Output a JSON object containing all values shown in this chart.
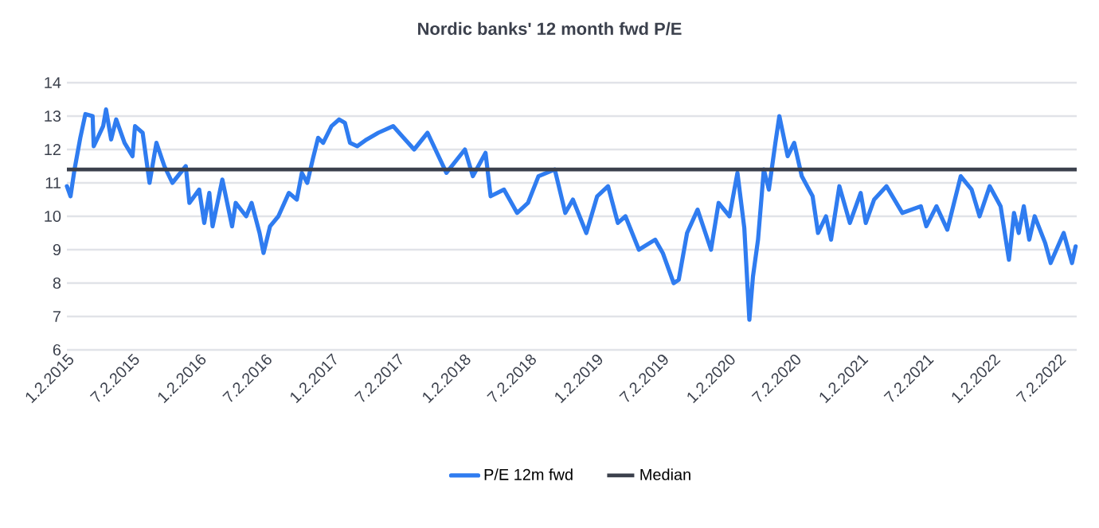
{
  "chart_data": {
    "type": "line",
    "title": "Nordic banks' 12 month fwd P/E",
    "x": [
      "2015-01-01",
      "2015-01-11",
      "2015-01-22",
      "2015-02-07",
      "2015-02-21",
      "2015-03-13",
      "2015-03-16",
      "2015-04-11",
      "2015-04-19",
      "2015-05-03",
      "2015-05-17",
      "2015-06-09",
      "2015-07-01",
      "2015-07-08",
      "2015-07-29",
      "2015-08-17",
      "2015-09-05",
      "2015-09-27",
      "2015-10-19",
      "2015-11-25",
      "2015-12-05",
      "2016-01-01",
      "2016-01-15",
      "2016-01-29",
      "2016-02-07",
      "2016-03-05",
      "2016-04-01",
      "2016-04-11",
      "2016-05-10",
      "2016-05-25",
      "2016-06-16",
      "2016-06-27",
      "2016-07-15",
      "2016-08-07",
      "2016-09-05",
      "2016-09-27",
      "2016-10-11",
      "2016-10-26",
      "2016-11-10",
      "2016-11-25",
      "2016-12-09",
      "2017-01-01",
      "2017-01-22",
      "2017-02-07",
      "2017-02-21",
      "2017-03-13",
      "2017-04-08",
      "2017-05-10",
      "2017-06-20",
      "2017-08-17",
      "2017-09-23",
      "2017-11-14",
      "2018-01-04",
      "2018-01-26",
      "2018-03-02",
      "2018-03-16",
      "2018-04-22",
      "2018-05-28",
      "2018-06-27",
      "2018-07-26",
      "2018-09-09",
      "2018-10-08",
      "2018-10-29",
      "2018-12-05",
      "2019-01-04",
      "2019-02-03",
      "2019-03-02",
      "2019-03-23",
      "2019-04-29",
      "2019-06-13",
      "2019-07-04",
      "2019-08-03",
      "2019-08-17",
      "2019-09-09",
      "2019-10-08",
      "2019-11-14",
      "2019-12-05",
      "2020-01-04",
      "2020-01-26",
      "2020-02-14",
      "2020-02-28",
      "2020-03-09",
      "2020-03-23",
      "2020-04-08",
      "2020-04-22",
      "2020-05-10",
      "2020-05-21",
      "2020-06-13",
      "2020-07-01",
      "2020-07-22",
      "2020-08-21",
      "2020-09-05",
      "2020-09-27",
      "2020-10-11",
      "2020-11-03",
      "2020-12-02",
      "2021-01-01",
      "2021-01-15",
      "2021-02-07",
      "2021-03-13",
      "2021-04-26",
      "2021-06-16",
      "2021-07-01",
      "2021-07-29",
      "2021-08-28",
      "2021-10-04",
      "2021-11-03",
      "2021-11-25",
      "2021-12-23",
      "2022-01-22",
      "2022-02-14",
      "2022-02-28",
      "2022-03-13",
      "2022-03-27",
      "2022-04-11",
      "2022-04-26",
      "2022-05-25",
      "2022-06-09",
      "2022-07-15",
      "2022-08-07",
      "2022-08-17"
    ],
    "series": [
      {
        "name": "P/E 12m fwd",
        "color": "#2f7cf0",
        "values": [
          10.9,
          10.6,
          11.4,
          12.35,
          13.06,
          13.0,
          12.1,
          12.7,
          13.2,
          12.3,
          12.9,
          12.2,
          11.8,
          12.7,
          12.5,
          11.0,
          12.2,
          11.5,
          11.0,
          11.5,
          10.4,
          10.8,
          9.8,
          10.7,
          9.7,
          11.1,
          9.7,
          10.4,
          10.0,
          10.4,
          9.5,
          8.9,
          9.7,
          10.0,
          10.7,
          10.5,
          11.3,
          11.0,
          11.7,
          12.35,
          12.2,
          12.7,
          12.9,
          12.8,
          12.2,
          12.1,
          12.3,
          12.5,
          12.7,
          12.0,
          12.5,
          11.3,
          12.0,
          11.2,
          11.9,
          10.6,
          10.8,
          10.1,
          10.4,
          11.2,
          11.4,
          10.1,
          10.5,
          9.5,
          10.6,
          10.9,
          9.8,
          10.0,
          9.0,
          9.3,
          8.9,
          8.0,
          8.1,
          9.5,
          10.2,
          9.0,
          10.4,
          10.0,
          11.3,
          9.65,
          6.9,
          8.2,
          9.3,
          11.4,
          10.8,
          12.2,
          13.0,
          11.8,
          12.2,
          11.2,
          10.6,
          9.5,
          10.0,
          9.3,
          10.9,
          9.8,
          10.7,
          9.8,
          10.5,
          10.9,
          10.1,
          10.3,
          9.7,
          10.3,
          9.6,
          11.2,
          10.8,
          10.0,
          10.9,
          10.3,
          8.7,
          10.1,
          9.5,
          10.3,
          9.3,
          10.0,
          9.2,
          8.6,
          9.5,
          8.6,
          9.1
        ]
      }
    ],
    "ref_lines": [
      {
        "axis": "y",
        "value": 11.4,
        "label": "Median",
        "color": "#3b404c"
      }
    ],
    "xlim": [
      "2015-01-01",
      "2022-08-20"
    ],
    "xticks": [
      {
        "value": "2015-01-02",
        "label": "1.2.2015"
      },
      {
        "value": "2015-07-02",
        "label": "7.2.2015"
      },
      {
        "value": "2016-01-02",
        "label": "1.2.2016"
      },
      {
        "value": "2016-07-02",
        "label": "7.2.2016"
      },
      {
        "value": "2017-01-02",
        "label": "1.2.2017"
      },
      {
        "value": "2017-07-02",
        "label": "7.2.2017"
      },
      {
        "value": "2018-01-02",
        "label": "1.2.2018"
      },
      {
        "value": "2018-07-02",
        "label": "7.2.2018"
      },
      {
        "value": "2019-01-02",
        "label": "1.2.2019"
      },
      {
        "value": "2019-07-02",
        "label": "7.2.2019"
      },
      {
        "value": "2020-01-02",
        "label": "1.2.2020"
      },
      {
        "value": "2020-07-02",
        "label": "7.2.2020"
      },
      {
        "value": "2021-01-02",
        "label": "1.2.2021"
      },
      {
        "value": "2021-07-02",
        "label": "7.2.2021"
      },
      {
        "value": "2022-01-02",
        "label": "1.2.2022"
      },
      {
        "value": "2022-07-02",
        "label": "7.2.2022"
      }
    ],
    "ylim": [
      6,
      14
    ],
    "yticks": [
      6,
      7,
      8,
      9,
      10,
      11,
      12,
      13,
      14
    ],
    "grid": "y",
    "legend": "bottom",
    "line_style": "solid",
    "marker": "none"
  }
}
